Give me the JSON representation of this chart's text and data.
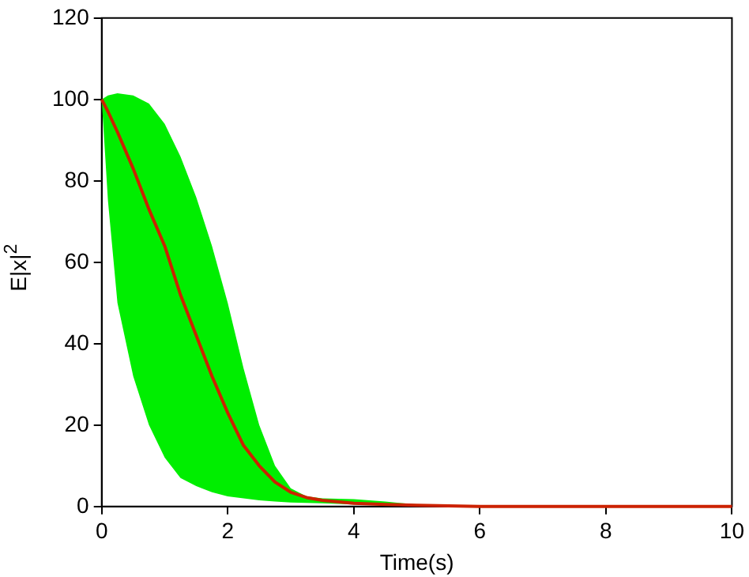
{
  "chart_data": {
    "type": "line",
    "xlabel": "Time(s)",
    "ylabel": "E|x|$^{2}$",
    "x": [
      0,
      0.1,
      0.25,
      0.5,
      0.75,
      1,
      1.25,
      1.5,
      1.75,
      2,
      2.25,
      2.5,
      2.75,
      3,
      3.25,
      3.5,
      4,
      4.5,
      5,
      6,
      10
    ],
    "series": [
      {
        "color": "#cc2200",
        "values": [
          100,
          97,
          92,
          83,
          73,
          64,
          52,
          42,
          32,
          23,
          15,
          10,
          6,
          3.5,
          2.2,
          1.5,
          0.8,
          0.5,
          0.3,
          0,
          0
        ],
        "lower": [
          100,
          75,
          50,
          32,
          20,
          12,
          7,
          5,
          3.5,
          2.5,
          2,
          1.5,
          1.2,
          1,
          0.9,
          0.8,
          0.5,
          0.3,
          0.2,
          0,
          0
        ],
        "upper": [
          100,
          101,
          101.5,
          101,
          99,
          94,
          86,
          76,
          64,
          50,
          34,
          20,
          10,
          4.5,
          2.5,
          2,
          1.8,
          1.2,
          0.5,
          0,
          0
        ]
      }
    ],
    "xlim": [
      0,
      10
    ],
    "xticks": [
      0,
      2,
      4,
      6,
      8,
      10
    ],
    "ylim": [
      0,
      120
    ],
    "yticks": [
      0,
      20,
      40,
      60,
      80,
      100,
      120
    ],
    "grid": false,
    "legend": false
  }
}
